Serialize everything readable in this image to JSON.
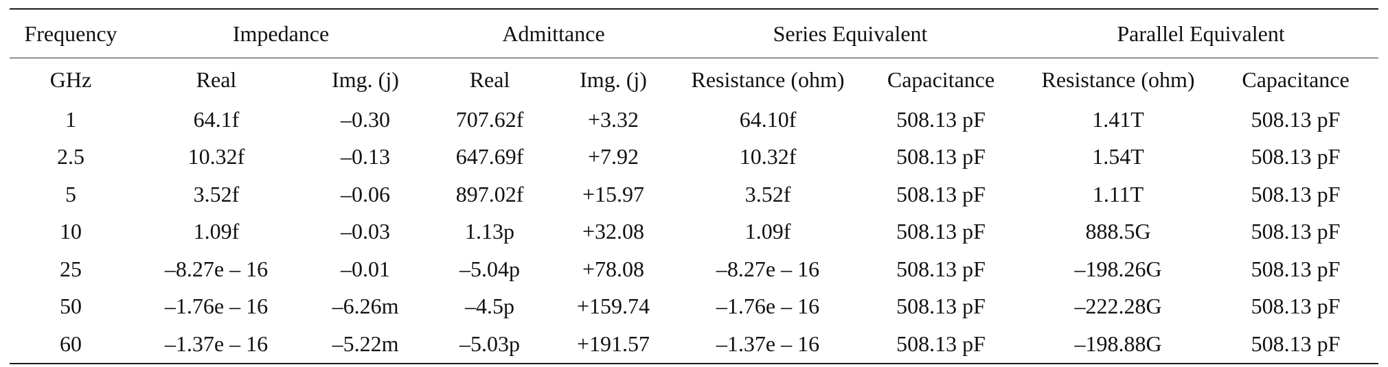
{
  "table": {
    "group_headers": {
      "frequency": "Frequency",
      "impedance": "Impedance",
      "admittance": "Admittance",
      "series": "Series Equivalent",
      "parallel": "Parallel Equivalent"
    },
    "sub_headers": [
      "GHz",
      "Real",
      "Img. (j)",
      "Real",
      "Img. (j)",
      "Resistance (ohm)",
      "Capacitance",
      "Resistance (ohm)",
      "Capacitance"
    ],
    "rows": [
      [
        "1",
        "64.1f",
        "–0.30",
        "707.62f",
        "+3.32",
        "64.10f",
        "508.13 pF",
        "1.41T",
        "508.13 pF"
      ],
      [
        "2.5",
        "10.32f",
        "–0.13",
        "647.69f",
        "+7.92",
        "10.32f",
        "508.13 pF",
        "1.54T",
        "508.13 pF"
      ],
      [
        "5",
        "3.52f",
        "–0.06",
        "897.02f",
        "+15.97",
        "3.52f",
        "508.13 pF",
        "1.11T",
        "508.13 pF"
      ],
      [
        "10",
        "1.09f",
        "–0.03",
        "1.13p",
        "+32.08",
        "1.09f",
        "508.13 pF",
        "888.5G",
        "508.13 pF"
      ],
      [
        "25",
        "–8.27e – 16",
        "–0.01",
        "–5.04p",
        "+78.08",
        "–8.27e – 16",
        "508.13 pF",
        "–198.26G",
        "508.13 pF"
      ],
      [
        "50",
        "–1.76e – 16",
        "–6.26m",
        "–4.5p",
        "+159.74",
        "–1.76e – 16",
        "508.13 pF",
        "–222.28G",
        "508.13 pF"
      ],
      [
        "60",
        "–1.37e – 16",
        "–5.22m",
        "–5.03p",
        "+191.57",
        "–1.37e – 16",
        "508.13 pF",
        "–198.88G",
        "508.13 pF"
      ]
    ]
  }
}
